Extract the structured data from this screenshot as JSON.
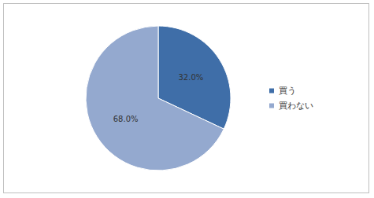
{
  "chart_data": {
    "type": "pie",
    "categories": [
      "買う",
      "買わない"
    ],
    "values": [
      32.0,
      68.0
    ],
    "value_labels": [
      "32.0%",
      "68.0%"
    ],
    "colors": [
      "#3f6ea8",
      "#94a9cf"
    ],
    "data_labels": true,
    "legend": "right"
  }
}
